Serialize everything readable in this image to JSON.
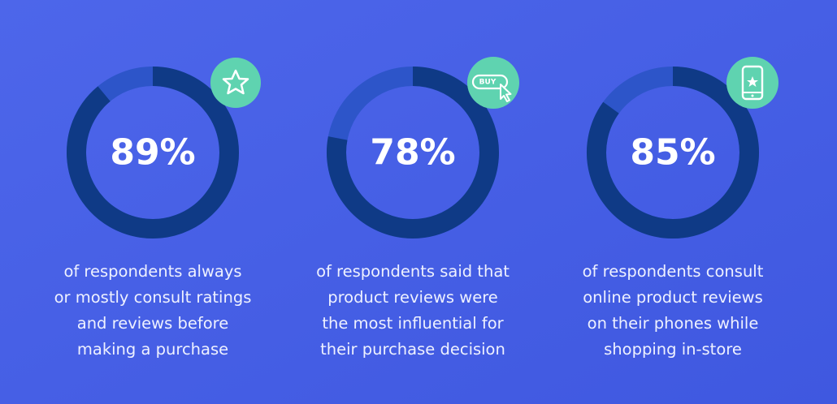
{
  "chart_data": [
    {
      "type": "donut",
      "values": [
        89
      ],
      "value_labels": [
        "89%"
      ],
      "color": "#0f3a86",
      "caption": [
        "of respondents always",
        "or mostly consult ratings",
        "and reviews before",
        "making a purchase"
      ]
    },
    {
      "type": "donut",
      "values": [
        78
      ],
      "value_labels": [
        "78%"
      ],
      "color": "#0f3a86",
      "icon_label": "BUY",
      "caption": [
        "of respondents said that",
        "product reviews were",
        "the most influential for",
        "their purchase decision"
      ]
    },
    {
      "type": "donut",
      "values": [
        85
      ],
      "value_labels": [
        "85%"
      ],
      "color": "#0f3a86",
      "caption": [
        "of respondents consult",
        "online product reviews",
        "on their phones while",
        "shopping in-store"
      ]
    }
  ]
}
